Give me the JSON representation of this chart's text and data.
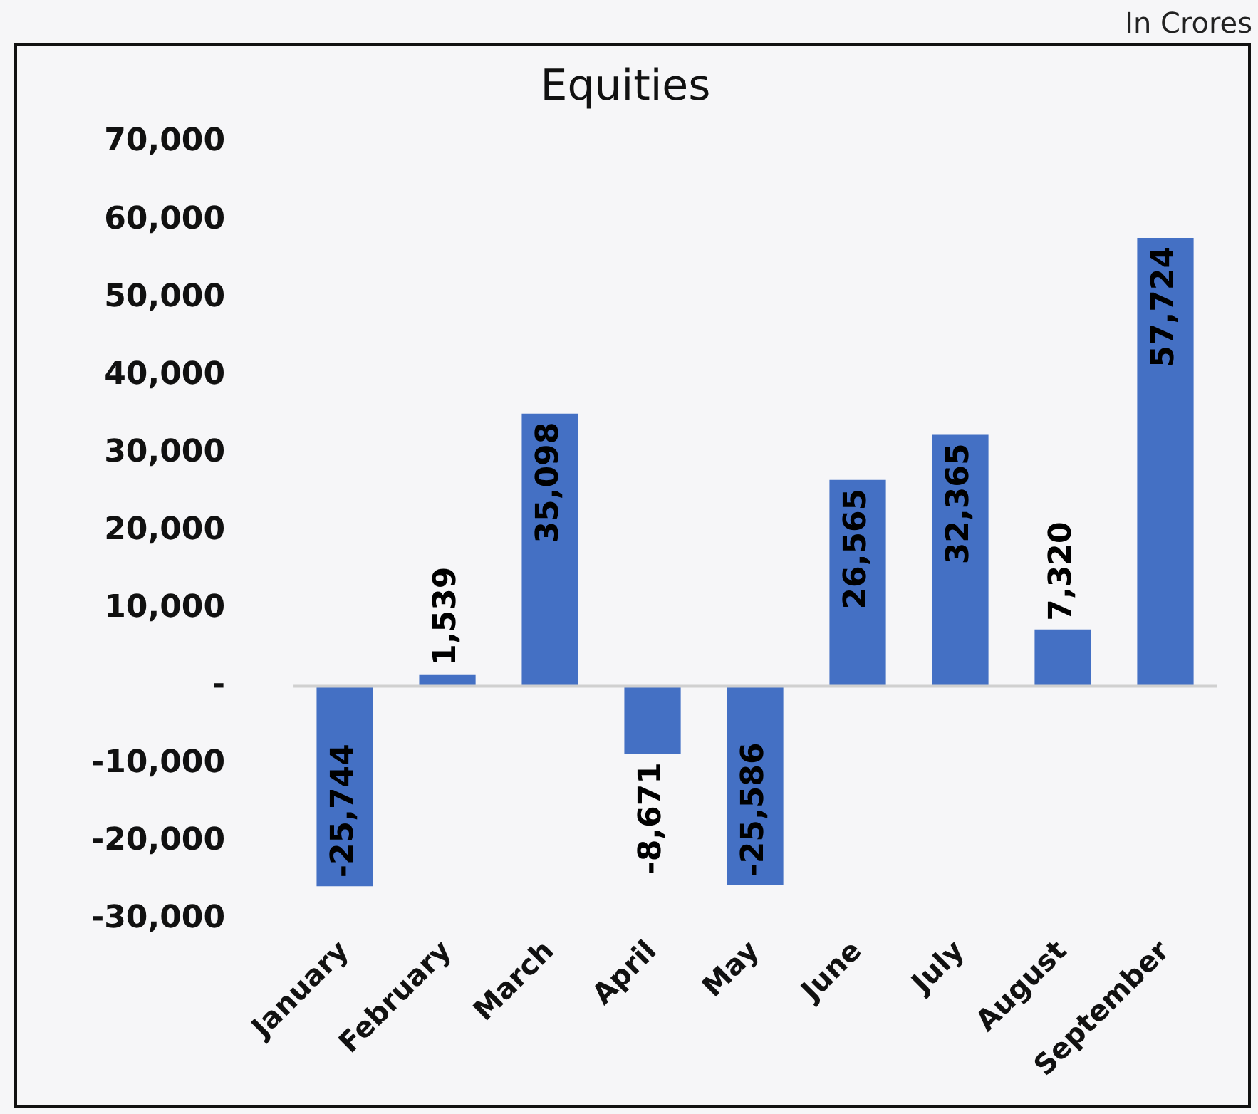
{
  "chart_data": {
    "type": "bar",
    "title": "Equities",
    "annotations": [
      "In Crores"
    ],
    "categories": [
      "January",
      "February",
      "March",
      "April",
      "May",
      "June",
      "July",
      "August",
      "September"
    ],
    "values": [
      -25744,
      1539,
      35098,
      -8671,
      -25586,
      26565,
      32365,
      7320,
      57724
    ],
    "color": "#4470c4",
    "ylim": [
      -30000,
      70000
    ],
    "yticks": [
      {
        "value": -30000,
        "label": "-30,000"
      },
      {
        "value": -20000,
        "label": "-20,000"
      },
      {
        "value": -10000,
        "label": "-10,000"
      },
      {
        "value": 0,
        "label": "-"
      },
      {
        "value": 10000,
        "label": "10,000"
      },
      {
        "value": 20000,
        "label": "20,000"
      },
      {
        "value": 30000,
        "label": "30,000"
      },
      {
        "value": 40000,
        "label": "40,000"
      },
      {
        "value": 50000,
        "label": "50,000"
      },
      {
        "value": 60000,
        "label": "60,000"
      },
      {
        "value": 70000,
        "label": "70,000"
      }
    ],
    "value_labels": [
      "-25,744",
      "1,539",
      "35,098",
      "-8,671",
      "-25,586",
      "26,565",
      "32,365",
      "7,320",
      "57,724"
    ],
    "legend": false
  }
}
